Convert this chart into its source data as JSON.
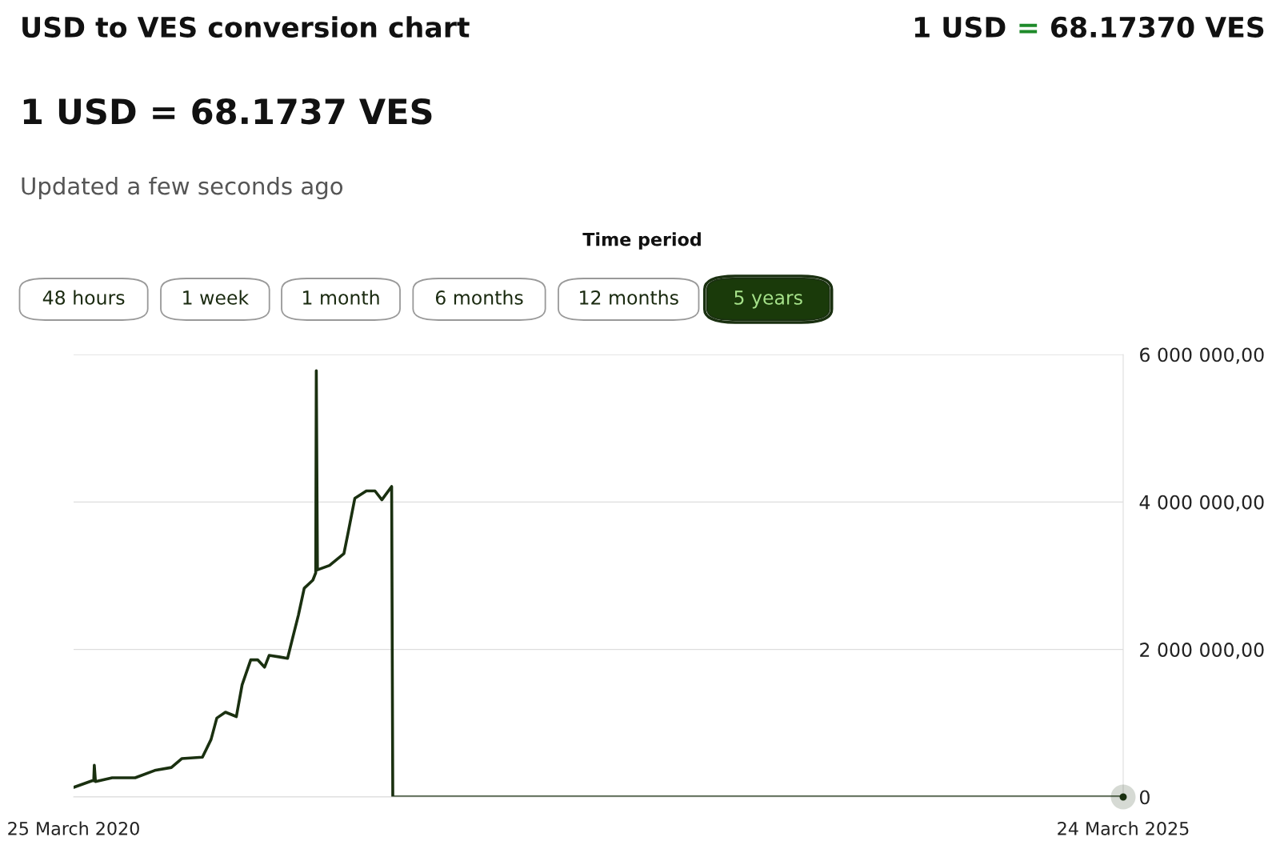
{
  "chart_data": {
    "type": "line",
    "title": "USD to VES conversion chart",
    "subtitle": "1 USD = 68.1737 VES",
    "annotations": [
      "1 USD = 68.17370 VES",
      "Updated a few seconds ago",
      "Time period",
      "48 hours",
      "1 week",
      "1 month",
      "6 months",
      "12 months",
      "5 years"
    ],
    "series": [
      {
        "color": "#1a3010",
        "x": [
          "2020-03-25",
          "2020-04-26",
          "2020-04-29",
          "2020-04-30",
          "2020-05-02",
          "2020-05-31",
          "2020-07-10",
          "2020-08-13",
          "2020-09-11",
          "2020-09-29",
          "2020-11-04",
          "2020-11-19",
          "2020-11-29",
          "2020-12-14",
          "2021-01-02",
          "2021-01-12",
          "2021-01-27",
          "2021-02-08",
          "2021-02-20",
          "2021-02-28",
          "2021-03-17",
          "2021-04-01",
          "2021-04-10",
          "2021-04-20",
          "2021-04-30",
          "2021-05-15",
          "2021-05-20",
          "2021-05-21",
          "2021-05-23",
          "2021-06-13",
          "2021-07-08",
          "2021-07-15",
          "2021-07-27",
          "2021-08-16",
          "2021-08-31",
          "2021-09-12",
          "2021-09-29",
          "2021-10-01",
          "2025-03-24"
        ],
        "values": [
          130000,
          220000,
          220000,
          430000,
          210000,
          260000,
          260000,
          360000,
          400000,
          520000,
          540000,
          780000,
          1070000,
          1150000,
          1090000,
          1520000,
          1860000,
          1860000,
          1760000,
          1920000,
          1900000,
          1880000,
          2160000,
          2470000,
          2830000,
          2940000,
          3040000,
          5780000,
          3080000,
          3140000,
          3300000,
          3570000,
          4050000,
          4150000,
          4150000,
          4030000,
          4210000,
          0,
          0
        ]
      },
      {
        "type": "scatter",
        "color": "#1a3010",
        "x": [
          "2025-03-24"
        ],
        "values": [
          0
        ]
      }
    ],
    "xlim": [
      "2020-03-25",
      "2025-03-24"
    ],
    "xticks": [
      {
        "value": "2020-03-25",
        "label": "25 March 2020"
      },
      {
        "value": "2025-03-24",
        "label": "24 March 2025"
      }
    ],
    "ylim": [
      0,
      6000000
    ],
    "yticks": [
      0,
      {
        "value": 2000000,
        "label": "2 000 000,00"
      },
      {
        "value": 4000000,
        "label": "4 000 000,00"
      },
      {
        "value": 6000000,
        "label": "6 000 000,00"
      }
    ],
    "grid": "y",
    "line_style": "solid"
  }
}
